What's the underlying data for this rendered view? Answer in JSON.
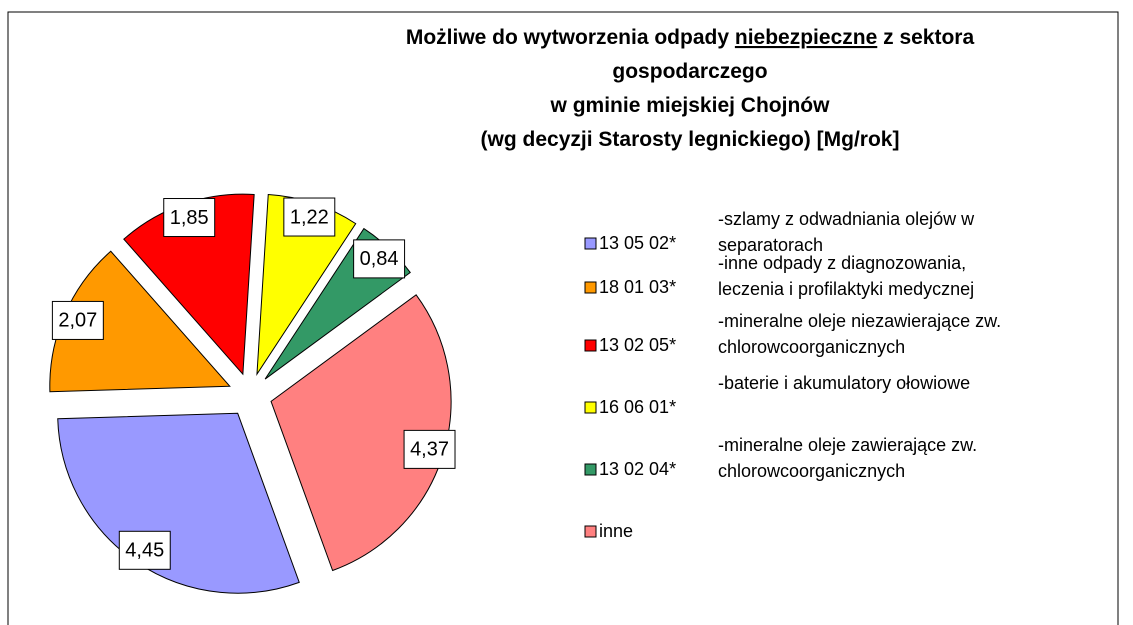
{
  "chart_data": {
    "type": "pie",
    "title": {
      "line1": [
        "Możliwe do wytworzenia odpady",
        "niebezpieczne",
        "z sektora"
      ],
      "line2": "gospodarczego",
      "line3": "w gminie miejskiej Chojnów",
      "line4": "(wg decyzji Starosty legnickiego) [Mg/rok]"
    },
    "categories": [
      "13 05 02*",
      "18 01 03*",
      "13 02 05*",
      "16 06 01*",
      "13 02 04*",
      "inne"
    ],
    "descriptions": [
      [
        "-szlamy z odwadniania olejów w",
        "separatorach"
      ],
      [
        "-inne odpady z diagnozowania,",
        "leczenia i profilaktyki medycznej"
      ],
      [
        "-mineralne oleje niezawierające zw.",
        "chlorowcoorganicznych"
      ],
      [
        "-baterie i akumulatory ołowiowe"
      ],
      [
        "-mineralne oleje zawierające zw.",
        "chlorowcoorganicznych"
      ],
      null
    ],
    "values": [
      4.45,
      2.07,
      1.85,
      1.22,
      0.84,
      4.37
    ],
    "value_labels": [
      "4,45",
      "2,07",
      "1,85",
      "1,22",
      "0,84",
      "4,37"
    ],
    "colors": [
      "#9999ff",
      "#ff9900",
      "#ff0000",
      "#ffff00",
      "#339966",
      "#ff8080"
    ],
    "legend": "right"
  }
}
